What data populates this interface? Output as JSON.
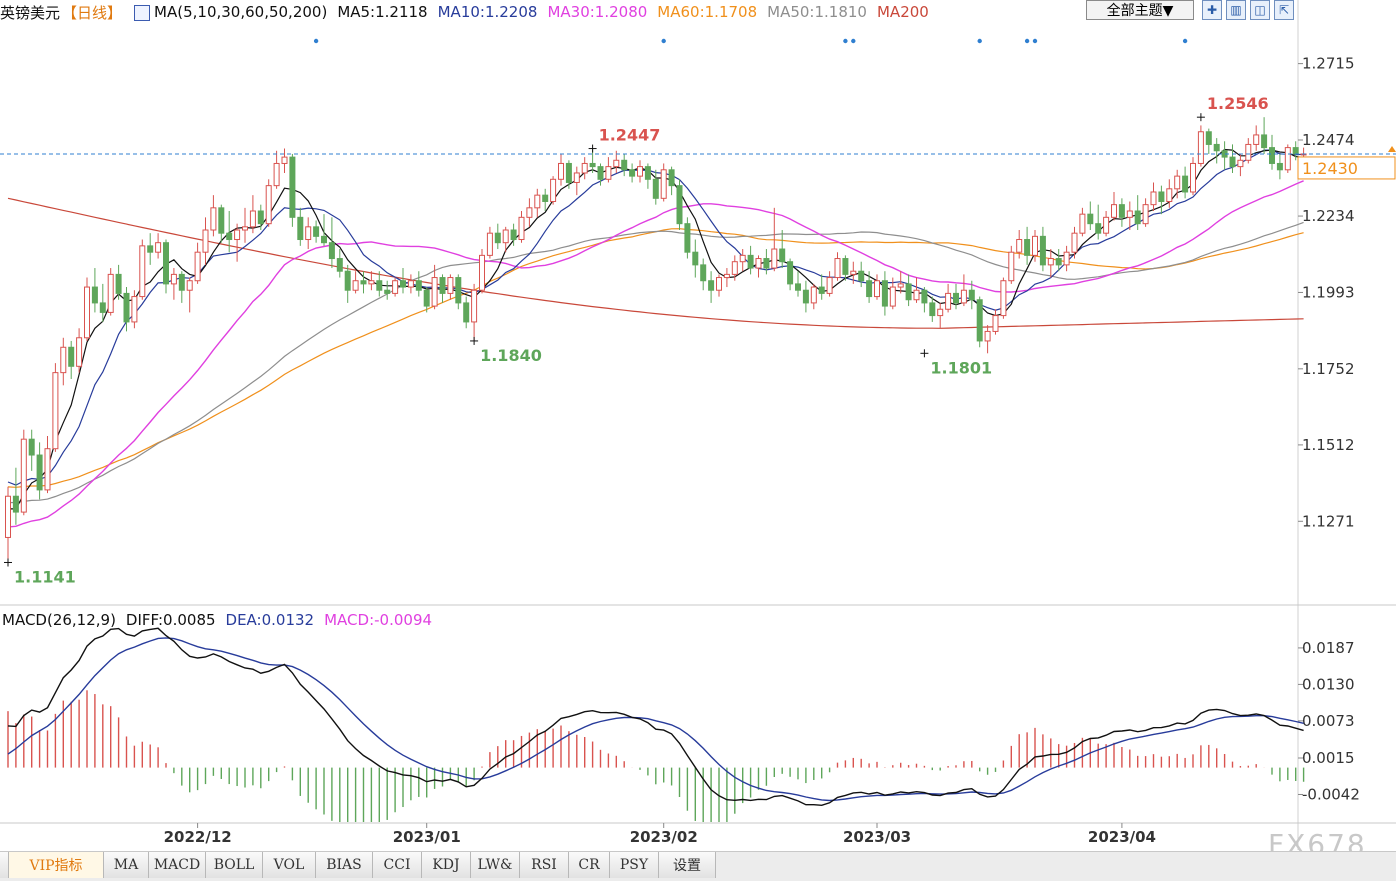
{
  "header": {
    "symbol": "英镑美元",
    "period": "【日线】",
    "ma_group": "MA(5,10,30,60,50,200)",
    "ma5": "MA5:1.2118",
    "ma10": "MA10:1.2208",
    "ma30": "MA30:1.2080",
    "ma60": "MA60:1.1708",
    "ma50": "MA50:1.1810",
    "ma200": "MA200",
    "theme_button": "全部主题▼"
  },
  "macd_header": {
    "title": "MACD(26,12,9)",
    "diff": "DIFF:0.0085",
    "dea": "DEA:0.0132",
    "macd": "MACD:-0.0094"
  },
  "colors": {
    "up": "#d9534f",
    "down": "#5ea65a",
    "ma5": "#111111",
    "ma10": "#283c9b",
    "ma30": "#e040e0",
    "ma60": "#f0901c",
    "ma50": "#8e8e8e",
    "ma200": "#c9483a",
    "price_line": "#2f7fd0",
    "current_price": "#f0901c"
  },
  "chart_data": {
    "type": "candlestick",
    "price_axis": {
      "range": [
        1.101,
        1.284
      ],
      "ticks": [
        "1.2715",
        "1.2474",
        "1.2234",
        "1.1993",
        "1.1752",
        "1.1512",
        "1.1271"
      ]
    },
    "x_labels": [
      {
        "label": "2022/12",
        "index": 24
      },
      {
        "label": "2023/01",
        "index": 53
      },
      {
        "label": "2023/02",
        "index": 83
      },
      {
        "label": "2023/03",
        "index": 110
      },
      {
        "label": "2023/04",
        "index": 141
      }
    ],
    "annotations": [
      {
        "text": "1.1141",
        "index": 0,
        "value": 1.1141,
        "kind": "low"
      },
      {
        "text": "1.2447",
        "index": 74,
        "value": 1.2447,
        "kind": "high"
      },
      {
        "text": "1.1840",
        "index": 59,
        "value": 1.184,
        "kind": "low"
      },
      {
        "text": "1.1801",
        "index": 116,
        "value": 1.1801,
        "kind": "low"
      },
      {
        "text": "1.2546",
        "index": 151,
        "value": 1.2546,
        "kind": "high"
      }
    ],
    "current_price": {
      "text": "1.2430",
      "value": 1.243
    },
    "event_markers": [
      39,
      83,
      106,
      107,
      123,
      129,
      130,
      149
    ],
    "candles": [
      [
        1.122,
        1.138,
        1.1141,
        1.135
      ],
      [
        1.135,
        1.144,
        1.126,
        1.13
      ],
      [
        1.13,
        1.156,
        1.129,
        1.153
      ],
      [
        1.153,
        1.156,
        1.143,
        1.148
      ],
      [
        1.148,
        1.152,
        1.134,
        1.137
      ],
      [
        1.137,
        1.154,
        1.136,
        1.15
      ],
      [
        1.15,
        1.177,
        1.149,
        1.174
      ],
      [
        1.174,
        1.185,
        1.17,
        1.182
      ],
      [
        1.182,
        1.184,
        1.172,
        1.176
      ],
      [
        1.176,
        1.188,
        1.174,
        1.185
      ],
      [
        1.185,
        1.204,
        1.184,
        1.201
      ],
      [
        1.201,
        1.207,
        1.193,
        1.196
      ],
      [
        1.196,
        1.202,
        1.19,
        1.193
      ],
      [
        1.193,
        1.207,
        1.192,
        1.205
      ],
      [
        1.205,
        1.208,
        1.197,
        1.199
      ],
      [
        1.199,
        1.201,
        1.187,
        1.19
      ],
      [
        1.19,
        1.2,
        1.188,
        1.198
      ],
      [
        1.198,
        1.216,
        1.197,
        1.214
      ],
      [
        1.214,
        1.218,
        1.208,
        1.212
      ],
      [
        1.212,
        1.218,
        1.21,
        1.215
      ],
      [
        1.215,
        1.216,
        1.199,
        1.202
      ],
      [
        1.202,
        1.207,
        1.197,
        1.205
      ],
      [
        1.205,
        1.206,
        1.196,
        1.2
      ],
      [
        1.2,
        1.204,
        1.193,
        1.203
      ],
      [
        1.203,
        1.215,
        1.202,
        1.212
      ],
      [
        1.212,
        1.223,
        1.208,
        1.219
      ],
      [
        1.219,
        1.23,
        1.217,
        1.226
      ],
      [
        1.226,
        1.227,
        1.215,
        1.218
      ],
      [
        1.218,
        1.225,
        1.212,
        1.216
      ],
      [
        1.216,
        1.221,
        1.209,
        1.219
      ],
      [
        1.219,
        1.226,
        1.215,
        1.22
      ],
      [
        1.22,
        1.23,
        1.218,
        1.225
      ],
      [
        1.225,
        1.227,
        1.219,
        1.221
      ],
      [
        1.221,
        1.235,
        1.22,
        1.233
      ],
      [
        1.233,
        1.244,
        1.232,
        1.24
      ],
      [
        1.24,
        1.2447,
        1.237,
        1.242
      ],
      [
        1.242,
        1.243,
        1.22,
        1.223
      ],
      [
        1.223,
        1.226,
        1.214,
        1.216
      ],
      [
        1.216,
        1.223,
        1.213,
        1.22
      ],
      [
        1.22,
        1.222,
        1.215,
        1.217
      ],
      [
        1.217,
        1.224,
        1.214,
        1.215
      ],
      [
        1.215,
        1.223,
        1.207,
        1.21
      ],
      [
        1.21,
        1.213,
        1.204,
        1.206
      ],
      [
        1.206,
        1.208,
        1.196,
        1.2
      ],
      [
        1.2,
        1.206,
        1.199,
        1.203
      ],
      [
        1.203,
        1.206,
        1.199,
        1.202
      ],
      [
        1.202,
        1.206,
        1.2,
        1.203
      ],
      [
        1.203,
        1.206,
        1.198,
        1.2
      ],
      [
        1.2,
        1.203,
        1.197,
        1.199
      ],
      [
        1.199,
        1.204,
        1.198,
        1.203
      ],
      [
        1.203,
        1.207,
        1.199,
        1.201
      ],
      [
        1.201,
        1.205,
        1.199,
        1.203
      ],
      [
        1.203,
        1.206,
        1.198,
        1.2
      ],
      [
        1.2,
        1.201,
        1.193,
        1.195
      ],
      [
        1.195,
        1.208,
        1.194,
        1.204
      ],
      [
        1.204,
        1.205,
        1.196,
        1.199
      ],
      [
        1.199,
        1.205,
        1.197,
        1.204
      ],
      [
        1.204,
        1.205,
        1.194,
        1.196
      ],
      [
        1.196,
        1.198,
        1.188,
        1.19
      ],
      [
        1.19,
        1.202,
        1.184,
        1.2
      ],
      [
        1.2,
        1.213,
        1.199,
        1.211
      ],
      [
        1.211,
        1.22,
        1.21,
        1.218
      ],
      [
        1.218,
        1.221,
        1.213,
        1.215
      ],
      [
        1.215,
        1.22,
        1.212,
        1.219
      ],
      [
        1.219,
        1.221,
        1.214,
        1.216
      ],
      [
        1.216,
        1.225,
        1.215,
        1.223
      ],
      [
        1.223,
        1.229,
        1.22,
        1.226
      ],
      [
        1.226,
        1.232,
        1.223,
        1.23
      ],
      [
        1.23,
        1.232,
        1.225,
        1.228
      ],
      [
        1.228,
        1.236,
        1.227,
        1.235
      ],
      [
        1.235,
        1.243,
        1.233,
        1.24
      ],
      [
        1.24,
        1.241,
        1.232,
        1.234
      ],
      [
        1.234,
        1.239,
        1.23,
        1.237
      ],
      [
        1.237,
        1.242,
        1.235,
        1.24
      ],
      [
        1.24,
        1.2447,
        1.237,
        1.239
      ],
      [
        1.239,
        1.24,
        1.233,
        1.235
      ],
      [
        1.235,
        1.242,
        1.234,
        1.239
      ],
      [
        1.239,
        1.244,
        1.237,
        1.241
      ],
      [
        1.241,
        1.243,
        1.236,
        1.238
      ],
      [
        1.238,
        1.24,
        1.234,
        1.236
      ],
      [
        1.236,
        1.241,
        1.234,
        1.239
      ],
      [
        1.239,
        1.24,
        1.232,
        1.235
      ],
      [
        1.235,
        1.238,
        1.227,
        1.229
      ],
      [
        1.229,
        1.24,
        1.228,
        1.238
      ],
      [
        1.238,
        1.239,
        1.23,
        1.233
      ],
      [
        1.233,
        1.235,
        1.219,
        1.221
      ],
      [
        1.221,
        1.223,
        1.21,
        1.212
      ],
      [
        1.212,
        1.216,
        1.204,
        1.208
      ],
      [
        1.208,
        1.21,
        1.2,
        1.203
      ],
      [
        1.203,
        1.206,
        1.196,
        1.2
      ],
      [
        1.2,
        1.205,
        1.198,
        1.204
      ],
      [
        1.204,
        1.207,
        1.201,
        1.205
      ],
      [
        1.205,
        1.211,
        1.203,
        1.209
      ],
      [
        1.209,
        1.213,
        1.206,
        1.211
      ],
      [
        1.211,
        1.214,
        1.205,
        1.207
      ],
      [
        1.207,
        1.211,
        1.204,
        1.21
      ],
      [
        1.21,
        1.213,
        1.205,
        1.207
      ],
      [
        1.207,
        1.226,
        1.206,
        1.213
      ],
      [
        1.213,
        1.219,
        1.207,
        1.209
      ],
      [
        1.209,
        1.21,
        1.2,
        1.202
      ],
      [
        1.202,
        1.206,
        1.198,
        1.2
      ],
      [
        1.2,
        1.203,
        1.193,
        1.196
      ],
      [
        1.196,
        1.202,
        1.194,
        1.201
      ],
      [
        1.201,
        1.205,
        1.197,
        1.199
      ],
      [
        1.199,
        1.206,
        1.198,
        1.204
      ],
      [
        1.204,
        1.212,
        1.203,
        1.21
      ],
      [
        1.21,
        1.211,
        1.203,
        1.205
      ],
      [
        1.205,
        1.209,
        1.202,
        1.206
      ],
      [
        1.206,
        1.209,
        1.201,
        1.203
      ],
      [
        1.203,
        1.206,
        1.196,
        1.198
      ],
      [
        1.198,
        1.205,
        1.197,
        1.203
      ],
      [
        1.203,
        1.206,
        1.192,
        1.195
      ],
      [
        1.195,
        1.204,
        1.194,
        1.201
      ],
      [
        1.201,
        1.206,
        1.199,
        1.202
      ],
      [
        1.202,
        1.205,
        1.195,
        1.197
      ],
      [
        1.197,
        1.204,
        1.196,
        1.2
      ],
      [
        1.2,
        1.201,
        1.193,
        1.196
      ],
      [
        1.196,
        1.198,
        1.19,
        1.192
      ],
      [
        1.192,
        1.196,
        1.188,
        1.194
      ],
      [
        1.194,
        1.202,
        1.193,
        1.199
      ],
      [
        1.199,
        1.202,
        1.194,
        1.196
      ],
      [
        1.196,
        1.205,
        1.195,
        1.2
      ],
      [
        1.2,
        1.203,
        1.194,
        1.197
      ],
      [
        1.197,
        1.198,
        1.182,
        1.184
      ],
      [
        1.184,
        1.189,
        1.1801,
        1.187
      ],
      [
        1.187,
        1.194,
        1.186,
        1.192
      ],
      [
        1.192,
        1.204,
        1.191,
        1.203
      ],
      [
        1.203,
        1.214,
        1.202,
        1.212
      ],
      [
        1.212,
        1.219,
        1.21,
        1.216
      ],
      [
        1.216,
        1.22,
        1.208,
        1.211
      ],
      [
        1.211,
        1.219,
        1.209,
        1.217
      ],
      [
        1.217,
        1.22,
        1.206,
        1.208
      ],
      [
        1.208,
        1.213,
        1.204,
        1.21
      ],
      [
        1.21,
        1.213,
        1.206,
        1.208
      ],
      [
        1.208,
        1.214,
        1.206,
        1.212
      ],
      [
        1.212,
        1.22,
        1.21,
        1.218
      ],
      [
        1.218,
        1.226,
        1.217,
        1.224
      ],
      [
        1.224,
        1.228,
        1.219,
        1.221
      ],
      [
        1.221,
        1.227,
        1.216,
        1.218
      ],
      [
        1.218,
        1.225,
        1.217,
        1.223
      ],
      [
        1.223,
        1.231,
        1.222,
        1.227
      ],
      [
        1.227,
        1.229,
        1.22,
        1.223
      ],
      [
        1.223,
        1.228,
        1.219,
        1.225
      ],
      [
        1.225,
        1.23,
        1.219,
        1.221
      ],
      [
        1.221,
        1.229,
        1.22,
        1.227
      ],
      [
        1.227,
        1.234,
        1.225,
        1.231
      ],
      [
        1.231,
        1.233,
        1.224,
        1.228
      ],
      [
        1.228,
        1.235,
        1.226,
        1.232
      ],
      [
        1.232,
        1.238,
        1.229,
        1.236
      ],
      [
        1.236,
        1.239,
        1.229,
        1.231
      ],
      [
        1.231,
        1.242,
        1.23,
        1.24
      ],
      [
        1.24,
        1.252,
        1.239,
        1.25
      ],
      [
        1.25,
        1.251,
        1.243,
        1.246
      ],
      [
        1.246,
        1.248,
        1.24,
        1.244
      ],
      [
        1.244,
        1.247,
        1.238,
        1.242
      ],
      [
        1.242,
        1.246,
        1.237,
        1.239
      ],
      [
        1.239,
        1.243,
        1.236,
        1.241
      ],
      [
        1.241,
        1.248,
        1.24,
        1.246
      ],
      [
        1.246,
        1.252,
        1.244,
        1.249
      ],
      [
        1.249,
        1.2546,
        1.243,
        1.245
      ],
      [
        1.245,
        1.249,
        1.238,
        1.24
      ],
      [
        1.24,
        1.243,
        1.235,
        1.238
      ],
      [
        1.238,
        1.246,
        1.237,
        1.245
      ],
      [
        1.245,
        1.247,
        1.241,
        1.243
      ],
      [
        1.243,
        1.245,
        1.24,
        1.243
      ]
    ],
    "ma200_start": 1.229,
    "ma200_min": 1.188,
    "ma200_end": 1.191,
    "macd_axis": {
      "range": [
        -0.0085,
        0.0215
      ],
      "ticks": [
        "0.0187",
        "0.0130",
        "0.0073",
        "0.0015",
        "-0.0042"
      ]
    }
  },
  "tabs": [
    "VIP指标",
    "MA",
    "MACD",
    "BOLL",
    "VOL",
    "BIAS",
    "CCI",
    "KDJ",
    "LW&",
    "RSI",
    "CR",
    "PSY",
    "设置"
  ],
  "watermark": "FX678"
}
